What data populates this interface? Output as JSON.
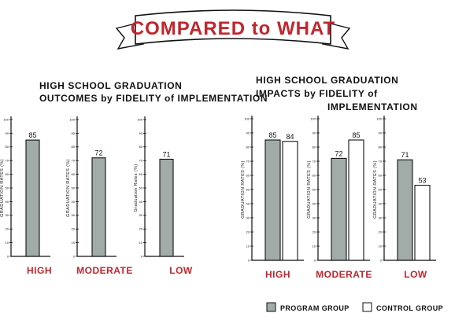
{
  "banner": {
    "title": "COMPARED to WHAT"
  },
  "colors": {
    "program": "#a1aca8",
    "control": "#ffffff",
    "accent": "#c0262d",
    "ink": "#111111"
  },
  "legend": {
    "program_label": "PROGRAM GROUP",
    "control_label": "CONTROL GROUP"
  },
  "chart_data": [
    {
      "type": "bar",
      "title": "HIGH SCHOOL GRADUATION OUTCOMES by FIDELITY of IMPLEMENTATION",
      "title_lines": [
        "HIGH SCHOOL GRADUATION",
        "OUTCOMES by FIDELITY of IMPLEMENTATION"
      ],
      "categories": [
        "HIGH",
        "MODERATE",
        "LOW"
      ],
      "ylabels": [
        "GRADUATION RATES (%)",
        "GRADUATION RATES (%)",
        "Graduation Rates (%)"
      ],
      "series": [
        {
          "name": "PROGRAM GROUP",
          "values": [
            85,
            72,
            71
          ]
        }
      ],
      "ylim": [
        0,
        100
      ],
      "yticks": [
        0,
        10,
        20,
        30,
        40,
        50,
        60,
        70,
        80,
        90,
        100
      ]
    },
    {
      "type": "bar",
      "title": "HIGH SCHOOL GRADUATION IMPACTS by FIDELITY of IMPLEMENTATION",
      "title_lines": [
        "HIGH SCHOOL GRADUATION",
        "IMPACTS by FIDELITY of",
        "IMPLEMENTATION"
      ],
      "categories": [
        "HIGH",
        "MODERATE",
        "LOW"
      ],
      "ylabels": [
        "GRADUATION RATES (%)",
        "GRADUATION RATES (%)",
        "GRADUATION RATES (%)"
      ],
      "series": [
        {
          "name": "PROGRAM GROUP",
          "values": [
            85,
            72,
            71
          ]
        },
        {
          "name": "CONTROL GROUP",
          "values": [
            84,
            85,
            53
          ]
        }
      ],
      "ylim": [
        0,
        100
      ],
      "yticks": [
        0,
        10,
        20,
        30,
        40,
        50,
        60,
        70,
        80,
        90,
        100
      ]
    }
  ]
}
